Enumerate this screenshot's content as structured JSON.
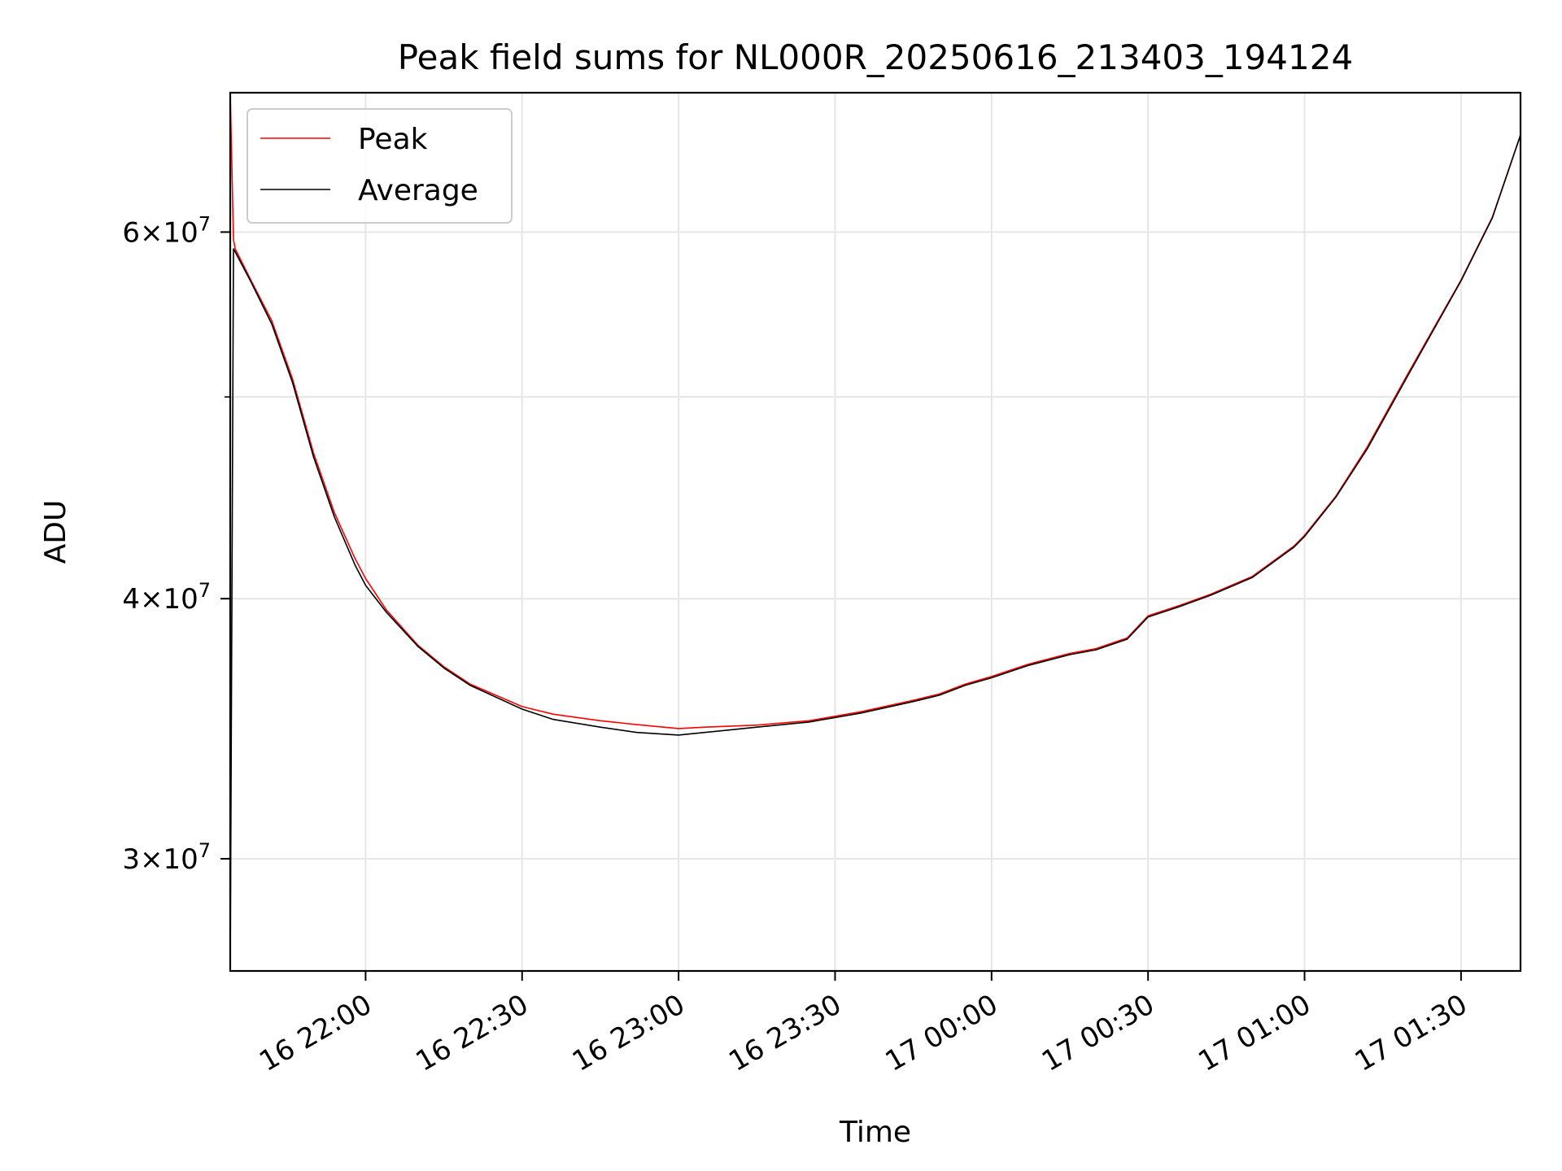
{
  "chart_data": {
    "type": "line",
    "title": "Peak field sums for NL000R_20250616_213403_194124",
    "xlabel": "Time",
    "ylabel": "ADU",
    "yscale": "log",
    "grid": true,
    "legend_position": "top-left",
    "xlim": [
      "2025-06-16 21:34:03",
      "2025-06-17 01:41:24"
    ],
    "ylim": [
      26500000,
      70000000
    ],
    "x_ticks": [
      {
        "t": "2025-06-16 22:00",
        "label": "16 22:00"
      },
      {
        "t": "2025-06-16 22:30",
        "label": "16 22:30"
      },
      {
        "t": "2025-06-16 23:00",
        "label": "16 23:00"
      },
      {
        "t": "2025-06-16 23:30",
        "label": "16 23:30"
      },
      {
        "t": "2025-06-17 00:00",
        "label": "17 00:00"
      },
      {
        "t": "2025-06-17 00:30",
        "label": "17 00:30"
      },
      {
        "t": "2025-06-17 01:00",
        "label": "17 01:00"
      },
      {
        "t": "2025-06-17 01:30",
        "label": "17 01:30"
      }
    ],
    "y_ticks": [
      {
        "value": 30000000,
        "mantissa": "3",
        "base": "10",
        "exponent": "7"
      },
      {
        "value": 40000000,
        "mantissa": "4",
        "base": "10",
        "exponent": "7"
      },
      {
        "value": 60000000,
        "mantissa": "6",
        "base": "10",
        "exponent": "7"
      }
    ],
    "y_minor_ticks": [
      50000000
    ],
    "series": [
      {
        "name": "Peak",
        "color": "#ff0000",
        "x": [
          "2025-06-16 21:34:03",
          "2025-06-16 21:34:40",
          "2025-06-16 21:35:00",
          "2025-06-16 21:38:00",
          "2025-06-16 21:42:00",
          "2025-06-16 21:46:00",
          "2025-06-16 21:50:00",
          "2025-06-16 21:54:00",
          "2025-06-16 21:58:00",
          "2025-06-16 22:00:00",
          "2025-06-16 22:04:00",
          "2025-06-16 22:10:00",
          "2025-06-16 22:15:00",
          "2025-06-16 22:20:00",
          "2025-06-16 22:30:00",
          "2025-06-16 22:36:00",
          "2025-06-16 22:45:00",
          "2025-06-16 22:52:00",
          "2025-06-16 23:00:00",
          "2025-06-16 23:05:00",
          "2025-06-16 23:15:00",
          "2025-06-16 23:25:00",
          "2025-06-16 23:35:00",
          "2025-06-16 23:45:00",
          "2025-06-16 23:50:00",
          "2025-06-16 23:55:00",
          "2025-06-17 00:00:00",
          "2025-06-17 00:07:00",
          "2025-06-17 00:15:00",
          "2025-06-17 00:20:00",
          "2025-06-17 00:26:00",
          "2025-06-17 00:30:00",
          "2025-06-17 00:36:00",
          "2025-06-17 00:42:00",
          "2025-06-17 00:50:00",
          "2025-06-17 00:58:00",
          "2025-06-17 01:00:00",
          "2025-06-17 01:06:00",
          "2025-06-17 01:12:00",
          "2025-06-17 01:20:00",
          "2025-06-17 01:30:00",
          "2025-06-17 01:36:00",
          "2025-06-17 01:41:24"
        ],
        "y": [
          70000000,
          59500000,
          58900000,
          56900000,
          54400000,
          51000000,
          47000000,
          44000000,
          41800000,
          40900000,
          39500000,
          38000000,
          37100000,
          36400000,
          35500000,
          35200000,
          34950000,
          34800000,
          34650000,
          34700000,
          34780000,
          34950000,
          35300000,
          35750000,
          36000000,
          36400000,
          36700000,
          37200000,
          37650000,
          37850000,
          38300000,
          39250000,
          39700000,
          40200000,
          41000000,
          42400000,
          42900000,
          44800000,
          47300000,
          51400000,
          56900000,
          61000000,
          66800000
        ]
      },
      {
        "name": "Average",
        "color": "#000000",
        "x": [
          "2025-06-16 21:34:03",
          "2025-06-16 21:34:40",
          "2025-06-16 21:35:00",
          "2025-06-16 21:38:00",
          "2025-06-16 21:42:00",
          "2025-06-16 21:46:00",
          "2025-06-16 21:50:00",
          "2025-06-16 21:54:00",
          "2025-06-16 21:58:00",
          "2025-06-16 22:00:00",
          "2025-06-16 22:04:00",
          "2025-06-16 22:10:00",
          "2025-06-16 22:15:00",
          "2025-06-16 22:20:00",
          "2025-06-16 22:30:00",
          "2025-06-16 22:36:00",
          "2025-06-16 22:45:00",
          "2025-06-16 22:52:00",
          "2025-06-16 23:00:00",
          "2025-06-16 23:05:00",
          "2025-06-16 23:15:00",
          "2025-06-16 23:25:00",
          "2025-06-16 23:35:00",
          "2025-06-16 23:45:00",
          "2025-06-16 23:50:00",
          "2025-06-16 23:55:00",
          "2025-06-17 00:00:00",
          "2025-06-17 00:07:00",
          "2025-06-17 00:15:00",
          "2025-06-17 00:20:00",
          "2025-06-17 00:26:00",
          "2025-06-17 00:30:00",
          "2025-06-17 00:36:00",
          "2025-06-17 00:42:00",
          "2025-06-17 00:50:00",
          "2025-06-17 00:58:00",
          "2025-06-17 01:00:00",
          "2025-06-17 01:06:00",
          "2025-06-17 01:12:00",
          "2025-06-17 01:20:00",
          "2025-06-17 01:30:00",
          "2025-06-17 01:36:00",
          "2025-06-17 01:41:24"
        ],
        "y": [
          26500000,
          58900000,
          58700000,
          56800000,
          54200000,
          50800000,
          46800000,
          43800000,
          41500000,
          40600000,
          39400000,
          37950000,
          37050000,
          36350000,
          35400000,
          35000000,
          34700000,
          34500000,
          34400000,
          34500000,
          34700000,
          34900000,
          35250000,
          35700000,
          35950000,
          36350000,
          36650000,
          37150000,
          37600000,
          37800000,
          38250000,
          39200000,
          39650000,
          40150000,
          40950000,
          42350000,
          42850000,
          44750000,
          47200000,
          51300000,
          56850000,
          60950000,
          66800000
        ]
      }
    ]
  }
}
